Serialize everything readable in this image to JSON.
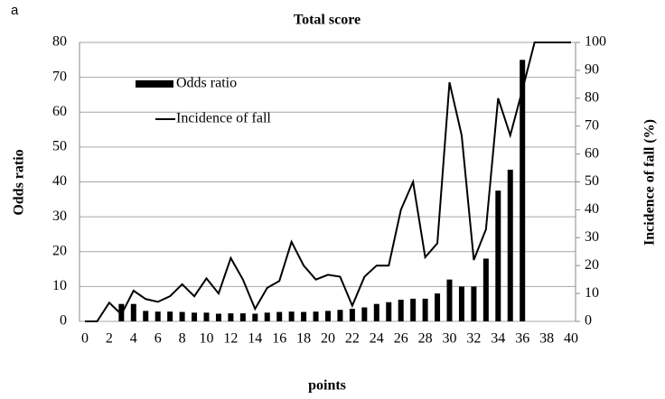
{
  "chart_data": {
    "type": "bar_line",
    "panel_label": "a",
    "title": "Total score",
    "xlabel": "points",
    "ylabel": "Odds ratio",
    "y2label": "Incidence of fall (%)",
    "x": [
      0,
      1,
      2,
      3,
      4,
      5,
      6,
      7,
      8,
      9,
      10,
      11,
      12,
      13,
      14,
      15,
      16,
      17,
      18,
      19,
      20,
      21,
      22,
      23,
      24,
      25,
      26,
      27,
      28,
      29,
      30,
      31,
      32,
      33,
      34,
      35,
      36,
      37,
      38,
      39,
      40
    ],
    "xlim": [
      0,
      40
    ],
    "xticks": [
      0,
      2,
      4,
      6,
      8,
      10,
      12,
      14,
      16,
      18,
      20,
      22,
      24,
      26,
      28,
      30,
      32,
      34,
      36,
      38,
      40
    ],
    "ylim": [
      0,
      80
    ],
    "yticks": [
      0,
      10,
      20,
      30,
      40,
      50,
      60,
      70,
      80
    ],
    "y2lim": [
      0,
      100
    ],
    "y2ticks": [
      0,
      10,
      20,
      30,
      40,
      50,
      60,
      70,
      80,
      90,
      100
    ],
    "grid": true,
    "series": [
      {
        "name": "Odds ratio",
        "type": "bar",
        "color": "#000000",
        "values": [
          null,
          null,
          null,
          5,
          5,
          3,
          2.8,
          2.8,
          2.7,
          2.5,
          2.5,
          2.2,
          2.3,
          2.3,
          2.2,
          2.5,
          2.7,
          2.8,
          2.7,
          2.8,
          3,
          3.3,
          3.6,
          4,
          5,
          5.5,
          6.2,
          6.5,
          6.5,
          8,
          12,
          10,
          10,
          18,
          37.5,
          43.5,
          75,
          null,
          null,
          null,
          null
        ]
      },
      {
        "name": "Incidence of fall",
        "type": "line",
        "axis": "y2",
        "color": "#000000",
        "values": [
          0,
          0,
          6.7,
          2.5,
          11,
          8,
          7,
          9,
          13.3,
          9,
          15.4,
          10,
          22.7,
          15,
          4.5,
          12,
          14.5,
          28.5,
          20,
          15,
          16.7,
          16,
          5.6,
          16,
          20,
          20,
          40,
          50,
          23,
          28,
          85.7,
          66.7,
          22,
          33,
          80,
          66.7,
          83,
          100,
          100,
          100,
          100
        ]
      }
    ]
  }
}
